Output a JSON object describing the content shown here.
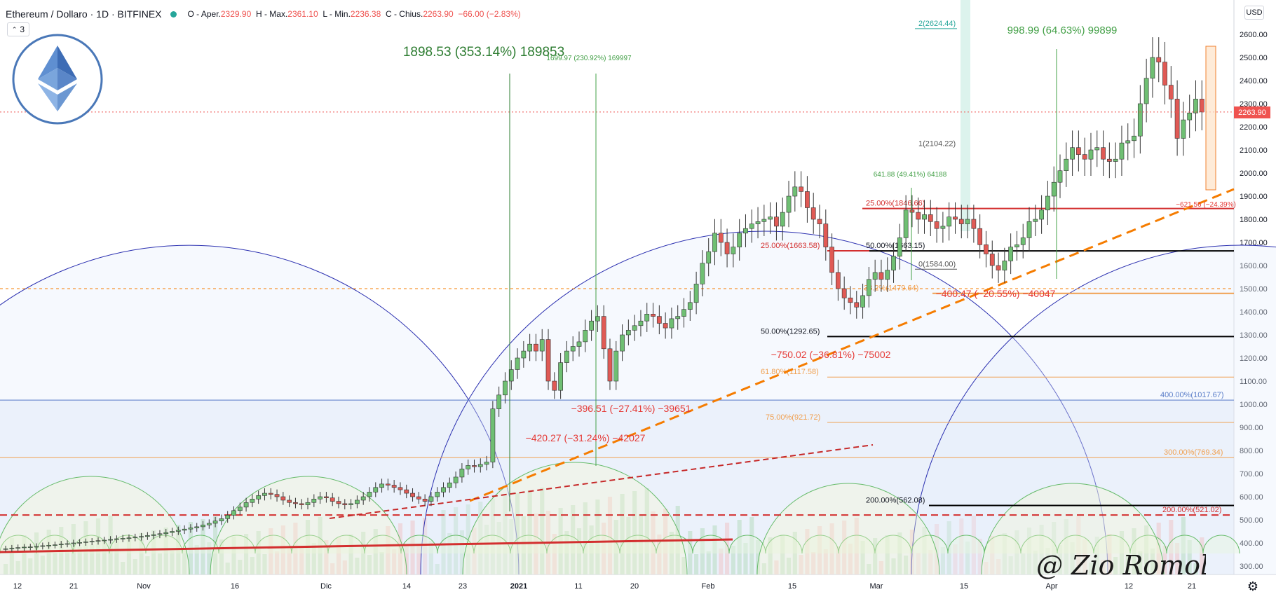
{
  "header": {
    "symbol": "Ethereum / Dollaro · 1D · BITFINEX",
    "open_label": "O - Aper.",
    "open": "2329.90",
    "high_label": "H - Max.",
    "high": "2361.10",
    "low_label": "L - Min.",
    "low": "2236.38",
    "close_label": "C - Chius.",
    "close": "2263.90",
    "change": "−66.00 (−2.83%)"
  },
  "indicators_count": "3",
  "currency_badge": "USD",
  "last_price_badge": "2263.90",
  "signature_text": "@ Zio Romolo",
  "colors": {
    "up": "#26a69a",
    "down": "#ef5350",
    "fib_orange": "#f0a050",
    "arc_blue": "#2a2fb0",
    "arc_green": "#66bb6a",
    "trend_orange": "#f57c00",
    "measure_green": "#2e7d32",
    "measure_red": "#e53935"
  },
  "chart_data": {
    "type": "candlestick",
    "symbol": "Ethereum / Dollaro",
    "timeframe": "1D",
    "exchange": "BITFINEX",
    "ylim": [
      250,
      2680
    ],
    "y_ticks": [
      300,
      400,
      500,
      600,
      700,
      800,
      900,
      1000,
      1100,
      1200,
      1300,
      1400,
      1500,
      1600,
      1700,
      1800,
      1900,
      2000,
      2100,
      2200,
      2300,
      2400,
      2500,
      2600
    ],
    "x_ticks": [
      "12",
      "21",
      "Nov",
      "16",
      "Dic",
      "14",
      "23",
      "2021",
      "11",
      "20",
      "Feb",
      "15",
      "Mar",
      "15",
      "Apr",
      "12",
      "21"
    ],
    "horizontal_levels": [
      {
        "label": "25.00%(1846.66)",
        "value": 1846.66
      },
      {
        "label": "25.00%(1663.58)",
        "value": 1663.58
      },
      {
        "label": "50.00%(1663.15)",
        "value": 1663.15
      },
      {
        "label": "50.00%(1292.65)",
        "value": 1292.65
      },
      {
        "label": "61.80%(1117.58)",
        "value": 1117.58
      },
      {
        "label": "75.00%(921.72)",
        "value": 921.72
      },
      {
        "label": "400.00%(1017.67)",
        "value": 1017.67
      },
      {
        "label": "300.00%(769.34)",
        "value": 769.34
      },
      {
        "label": "200.00%(562.08)",
        "value": 562.08
      },
      {
        "label": "200.00%(521.02)",
        "value": 521.02
      },
      {
        "label": "1(2104.22)",
        "value": 2104.22
      },
      {
        "label": "0(1584.00)",
        "value": 1584.0
      },
      {
        "label": "2(2624.44)",
        "value": 2624.44
      },
      {
        "label": "38.2%(1479.64)",
        "value": 1479.64
      },
      {
        "label": "",
        "value": 1500
      }
    ],
    "measurements": [
      {
        "text": "1898.53 (353.14%) 189853",
        "kind": "up"
      },
      {
        "text": "1699.97 (230.92%) 169997",
        "kind": "up"
      },
      {
        "text": "998.99 (64.63%) 99899",
        "kind": "up"
      },
      {
        "text": "641.88 (49.41%) 64188",
        "kind": "up"
      },
      {
        "text": "−750.02 (−36.81%) −75002",
        "kind": "down"
      },
      {
        "text": "−396.51 (−27.41%) −39651",
        "kind": "down"
      },
      {
        "text": "−420.27 (−31.24%) −42027",
        "kind": "down"
      },
      {
        "text": "−400.47 (−20.55%) −40047",
        "kind": "down"
      },
      {
        "text": "−621.56 (−24.39%)",
        "kind": "down"
      }
    ],
    "close_series": [
      375,
      378,
      380,
      382,
      383,
      385,
      388,
      390,
      392,
      395,
      397,
      400,
      402,
      405,
      407,
      410,
      412,
      415,
      418,
      420,
      422,
      425,
      428,
      432,
      436,
      440,
      445,
      450,
      455,
      460,
      465,
      470,
      478,
      485,
      495,
      505,
      520,
      540,
      555,
      575,
      590,
      605,
      615,
      610,
      600,
      585,
      575,
      570,
      565,
      575,
      590,
      600,
      595,
      580,
      570,
      565,
      570,
      585,
      600,
      620,
      640,
      655,
      650,
      640,
      630,
      615,
      600,
      590,
      580,
      600,
      620,
      640,
      660,
      685,
      720,
      735,
      730,
      740,
      750,
      980,
      1040,
      1100,
      1150,
      1200,
      1230,
      1260,
      1230,
      1280,
      1100,
      1060,
      1180,
      1230,
      1250,
      1270,
      1320,
      1360,
      1380,
      1240,
      1100,
      1230,
      1300,
      1320,
      1340,
      1360,
      1390,
      1380,
      1350,
      1330,
      1370,
      1380,
      1410,
      1440,
      1520,
      1610,
      1660,
      1740,
      1700,
      1650,
      1680,
      1740,
      1760,
      1780,
      1790,
      1800,
      1810,
      1770,
      1830,
      1900,
      1940,
      1920,
      1850,
      1800,
      1780,
      1680,
      1570,
      1500,
      1460,
      1440,
      1420,
      1470,
      1540,
      1570,
      1540,
      1580,
      1640,
      1720,
      1840,
      1830,
      1800,
      1820,
      1790,
      1760,
      1770,
      1810,
      1800,
      1780,
      1800,
      1760,
      1690,
      1650,
      1600,
      1580,
      1620,
      1680,
      1690,
      1720,
      1790,
      1800,
      1840,
      1900,
      1960,
      2010,
      2060,
      2110,
      2080,
      2060,
      2100,
      2110,
      2060,
      2050,
      2060,
      2130,
      2140,
      2160,
      2300,
      2410,
      2500,
      2480,
      2380,
      2320,
      2150,
      2230,
      2260,
      2320,
      2264
    ],
    "last_close": 2263.9
  }
}
